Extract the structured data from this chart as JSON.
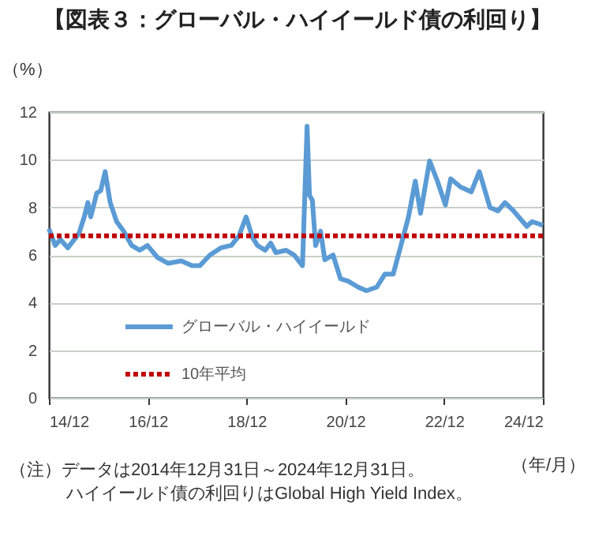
{
  "chart_data": {
    "type": "line",
    "title": "【図表３：グローバル・ハイイールド債の利回り】",
    "ylabel": "（%）",
    "xlabel": "（年/月）",
    "annotations": [
      "（注）データは2014年12月31日～2024年12月31日。",
      "ハイイールド債の利回りはGlobal High Yield Index。"
    ],
    "xlim": [
      "2014-12-31",
      "2024-12-31"
    ],
    "xticks": [
      {
        "value": "2014-12-31",
        "label": "14/12"
      },
      {
        "value": "2016-12-31",
        "label": "16/12"
      },
      {
        "value": "2018-12-31",
        "label": "18/12"
      },
      {
        "value": "2020-12-31",
        "label": "20/12"
      },
      {
        "value": "2022-12-31",
        "label": "22/12"
      },
      {
        "value": "2024-12-31",
        "label": "24/12"
      }
    ],
    "ylim": [
      0,
      12
    ],
    "yticks": [
      0,
      2,
      4,
      6,
      8,
      10,
      12
    ],
    "grid": "y",
    "legend": "bottom left",
    "marker": "none",
    "series": [
      {
        "name": "グローバル・ハイイールド",
        "color": "#5b9bd5",
        "line_style": "solid",
        "x": [
          "2014-12-31",
          "2015-02-15",
          "2015-03-25",
          "2015-05-20",
          "2015-08-10",
          "2015-09-18",
          "2015-10-15",
          "2015-11-05",
          "2015-12-20",
          "2016-01-18",
          "2016-02-20",
          "2016-03-28",
          "2016-05-15",
          "2016-07-05",
          "2016-09-03",
          "2016-11-01",
          "2016-12-28",
          "2017-03-12",
          "2017-05-31",
          "2017-09-05",
          "2017-11-22",
          "2018-01-20",
          "2018-04-05",
          "2018-06-25",
          "2018-09-10",
          "2018-11-05",
          "2018-12-28",
          "2019-02-12",
          "2019-03-22",
          "2019-05-18",
          "2019-06-28",
          "2019-08-05",
          "2019-10-20",
          "2019-12-18",
          "2020-02-18",
          "2020-03-23",
          "2020-04-10",
          "2020-05-01",
          "2020-05-25",
          "2020-07-01",
          "2020-08-01",
          "2020-10-01",
          "2020-11-25",
          "2021-01-20",
          "2021-04-05",
          "2021-06-05",
          "2021-08-20",
          "2021-10-20",
          "2021-12-20",
          "2022-02-15",
          "2022-04-12",
          "2022-06-01",
          "2022-07-10",
          "2022-09-15",
          "2022-11-12",
          "2023-01-10",
          "2023-02-18",
          "2023-05-03",
          "2023-07-20",
          "2023-09-18",
          "2023-12-05",
          "2024-02-03",
          "2024-03-25",
          "2024-05-28",
          "2024-09-03",
          "2024-10-12",
          "2024-12-31"
        ],
        "values": [
          7.1,
          6.4,
          6.65,
          6.3,
          6.9,
          7.6,
          8.2,
          7.6,
          8.6,
          8.7,
          9.5,
          8.2,
          7.4,
          7.0,
          6.4,
          6.2,
          6.4,
          5.9,
          5.65,
          5.75,
          5.55,
          5.55,
          6.0,
          6.3,
          6.4,
          6.8,
          7.6,
          6.75,
          6.4,
          6.2,
          6.5,
          6.1,
          6.2,
          6.0,
          5.55,
          11.4,
          8.5,
          8.3,
          6.4,
          7.0,
          5.8,
          6.0,
          5.0,
          4.9,
          4.65,
          4.5,
          4.65,
          5.2,
          5.2,
          6.4,
          7.6,
          9.1,
          7.75,
          9.95,
          9.1,
          8.1,
          9.2,
          8.85,
          8.65,
          9.5,
          8.0,
          7.85,
          8.2,
          7.85,
          7.2,
          7.4,
          7.25
        ]
      },
      {
        "name": "10年平均",
        "color": "#c00000",
        "line_style": "dotted",
        "x": [
          "2014-12-31",
          "2024-12-31"
        ],
        "values": [
          6.8,
          6.8
        ]
      }
    ]
  }
}
